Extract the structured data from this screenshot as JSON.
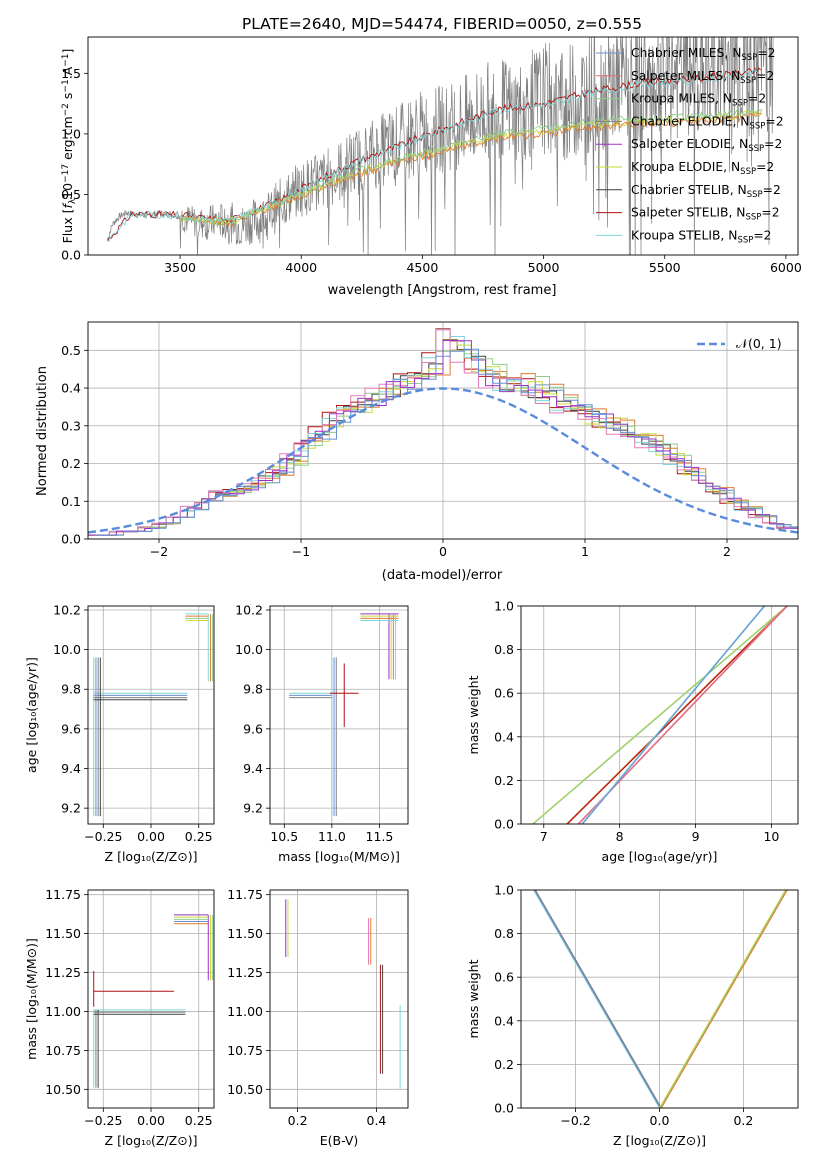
{
  "figure_title": "PLATE=2640, MJD=54474, FIBERID=0050, z=0.555",
  "models": [
    {
      "name": "Chabrier MILES, N$_{SSP}$=2",
      "label_main": "Chabrier MILES, N",
      "color": "#6b8fd6"
    },
    {
      "name": "Salpeter MILES, N$_{SSP}$=2",
      "label_main": "Salpeter MILES, N",
      "color": "#e07070"
    },
    {
      "name": "Kroupa MILES, N$_{SSP}$=2",
      "label_main": "Kroupa MILES, N",
      "color": "#8fce8f"
    },
    {
      "name": "Chabrier ELODIE, N$_{SSP}$=2",
      "label_main": "Chabrier ELODIE, N",
      "color": "#7f7f7f"
    },
    {
      "name": "Salpeter ELODIE, N$_{SSP}$=2",
      "label_main": "Salpeter ELODIE, N",
      "color": "#9b30c9"
    },
    {
      "name": "Kroupa ELODIE, N$_{SSP}$=2",
      "label_main": "Kroupa ELODIE, N",
      "color": "#c9d93a"
    },
    {
      "name": "Chabrier STELIB, N$_{SSP}$=2",
      "label_main": "Chabrier STELIB, N",
      "color": "#404040"
    },
    {
      "name": "Salpeter STELIB, N$_{SSP}$=2",
      "label_main": "Salpeter STELIB, N",
      "color": "#b01010"
    },
    {
      "name": "Kroupa STELIB, N$_{SSP}$=2",
      "label_main": "Kroupa STELIB, N",
      "color": "#7fd6d9"
    }
  ],
  "legend_sub": "SSP",
  "legend_suffix": "=2",
  "extra_colors": {
    "orange": "#e07b30",
    "pink": "#e57bb5",
    "data_grey": "#808080"
  },
  "chart_data": [
    {
      "id": "spectrum",
      "type": "line",
      "xlabel": "wavelength [Angstrom, rest frame]",
      "ylabel": "Flux [f$_\\lambda$10$^{-17}$ erg cm$^{-2}$ s$^{-1}$ A$^{-1}$]",
      "ylabel_parts": [
        "Flux [",
        "f",
        "λ",
        "10",
        "−17",
        " erg cm",
        "−2",
        " s",
        "−1",
        " A",
        "−1",
        "]"
      ],
      "xlim": [
        3120,
        6050
      ],
      "ylim": [
        0,
        1.8
      ],
      "xticks": [
        3500,
        4000,
        4500,
        5000,
        5500,
        6000
      ],
      "yticks": [
        0.0,
        0.5,
        1.0,
        1.5
      ],
      "legend_position": "upper right",
      "series": [
        {
          "name": "data",
          "x": [
            3200,
            3220,
            3240,
            3260,
            3280,
            3300,
            3350,
            3400,
            3450,
            3500,
            3550,
            3600,
            3650,
            3700,
            3750,
            3800,
            3850,
            3900,
            3950,
            4000,
            4100,
            4200,
            4300,
            4400,
            4500,
            4600,
            4700,
            4800,
            4900,
            5000,
            5100,
            5200,
            5300,
            5400,
            5500,
            5600,
            5700,
            5800,
            5900
          ],
          "y": [
            0.12,
            0.25,
            0.3,
            0.33,
            0.35,
            0.34,
            0.33,
            0.34,
            0.34,
            0.32,
            0.28,
            0.26,
            0.28,
            0.28,
            0.24,
            0.28,
            0.3,
            0.4,
            0.48,
            0.55,
            0.62,
            0.74,
            0.84,
            0.92,
            1.02,
            1.05,
            1.12,
            1.22,
            1.18,
            1.3,
            1.25,
            1.36,
            1.4,
            1.45,
            1.48,
            1.52,
            1.55,
            1.6,
            1.65
          ]
        },
        {
          "name": "Salpeter STELIB, N$_{SSP}$=2",
          "x": [
            3200,
            3300,
            3500,
            3700,
            3900,
            4000,
            4200,
            4400,
            4600,
            4800,
            5000,
            5200,
            5400,
            5600,
            5800,
            5900
          ],
          "y": [
            0.12,
            0.34,
            0.33,
            0.28,
            0.44,
            0.55,
            0.75,
            0.9,
            1.05,
            1.2,
            1.25,
            1.35,
            1.42,
            1.45,
            1.5,
            1.52
          ]
        },
        {
          "name": "Kroupa ELODIE, N$_{SSP}$=2",
          "x": [
            3500,
            3700,
            3900,
            4000,
            4200,
            4400,
            4600,
            4800,
            5000,
            5200,
            5400,
            5600,
            5800,
            5900
          ],
          "y": [
            0.3,
            0.27,
            0.42,
            0.5,
            0.66,
            0.78,
            0.88,
            0.98,
            1.02,
            1.08,
            1.1,
            1.12,
            1.15,
            1.18
          ]
        }
      ]
    },
    {
      "id": "residuals",
      "type": "step-histogram",
      "xlabel": "(data-model)/error",
      "ylabel": "Normed distribution",
      "xlim": [
        -2.5,
        2.5
      ],
      "ylim": [
        0,
        0.575
      ],
      "xticks": [
        -2,
        -1,
        0,
        1,
        2
      ],
      "yticks": [
        0.0,
        0.1,
        0.2,
        0.3,
        0.4,
        0.5
      ],
      "legend": "$\\mathcal{N}(0,1)$",
      "legend_main": "𝒩(0, 1)",
      "legend_position": "upper right",
      "bin_width": 0.1,
      "bin_start": -2.5,
      "heights": [
        0.01,
        0.01,
        0.02,
        0.02,
        0.03,
        0.04,
        0.06,
        0.08,
        0.1,
        0.12,
        0.13,
        0.14,
        0.16,
        0.18,
        0.21,
        0.25,
        0.28,
        0.32,
        0.34,
        0.36,
        0.38,
        0.4,
        0.42,
        0.44,
        0.47,
        0.52,
        0.5,
        0.45,
        0.43,
        0.42,
        0.41,
        0.4,
        0.38,
        0.36,
        0.34,
        0.33,
        0.31,
        0.3,
        0.28,
        0.26,
        0.24,
        0.21,
        0.18,
        0.15,
        0.13,
        0.1,
        0.08,
        0.06,
        0.04,
        0.03
      ]
    },
    {
      "id": "age_vs_Z",
      "type": "errorbar",
      "xlabel": "Z [log$_{10}$($Z/Z_\\odot$)]",
      "ylabel": "age  [log$_{10}$($age/yr$)]",
      "xlim": [
        -0.33,
        0.33
      ],
      "ylim": [
        9.12,
        10.22
      ],
      "xticks": [
        -0.25,
        0.0,
        0.25
      ],
      "yticks": [
        9.2,
        9.4,
        9.6,
        9.8,
        10.0,
        10.2
      ],
      "points": [
        {
          "x": 0.3,
          "y": 10.18,
          "xerr": [
            0.12,
            0.0
          ],
          "yerr": [
            0.34,
            0.0
          ]
        },
        {
          "x": -0.3,
          "y": 9.78,
          "xerr": [
            0.0,
            0.49
          ],
          "yerr": [
            0.62,
            0.18
          ]
        }
      ]
    },
    {
      "id": "age_vs_mass",
      "type": "errorbar",
      "xlabel": "mass [log$_{10}$($M/M_\\odot$)]",
      "ylabel": "",
      "xlim": [
        10.35,
        11.8
      ],
      "ylim": [
        9.12,
        10.22
      ],
      "xticks": [
        10.5,
        11.0,
        11.5
      ],
      "yticks": [
        9.2,
        9.4,
        9.6,
        9.8,
        10.0,
        10.2
      ],
      "points": [
        {
          "x": 11.6,
          "y": 10.18,
          "xerr": [
            0.3,
            0.1
          ],
          "yerr": [
            0.33,
            0.0
          ]
        },
        {
          "x": 11.0,
          "y": 9.78,
          "xerr": [
            0.45,
            0.0
          ],
          "yerr": [
            0.62,
            0.18
          ]
        },
        {
          "x": 11.13,
          "y": 9.78,
          "xerr": [
            0.15,
            0.15
          ],
          "yerr": [
            0.17,
            0.15
          ]
        }
      ]
    },
    {
      "id": "cumulative_age",
      "type": "line",
      "xlabel": "age  [log$_{10}$($age/yr$)]",
      "ylabel": "mass weight",
      "xlim": [
        6.7,
        10.35
      ],
      "ylim": [
        0,
        1
      ],
      "xticks": [
        7,
        8,
        9,
        10
      ],
      "yticks": [
        0.0,
        0.2,
        0.4,
        0.6,
        0.8,
        1.0
      ],
      "series": [
        {
          "x": [
            6.85,
            10.2
          ],
          "y": [
            0.0,
            1.0
          ]
        },
        {
          "x": [
            7.3,
            10.2
          ],
          "y": [
            0.0,
            1.0
          ]
        },
        {
          "x": [
            7.45,
            10.2
          ],
          "y": [
            0.0,
            1.0
          ]
        },
        {
          "x": [
            7.5,
            9.9
          ],
          "y": [
            0.0,
            1.0
          ]
        }
      ]
    },
    {
      "id": "mass_vs_Z",
      "type": "errorbar",
      "xlabel": "Z [log$_{10}$($Z/Z_\\odot$)]",
      "ylabel": "mass [log$_{10}$($M/M_\\odot$)]",
      "xlim": [
        -0.33,
        0.33
      ],
      "ylim": [
        10.38,
        11.78
      ],
      "xticks": [
        -0.25,
        0.0,
        0.25
      ],
      "yticks": [
        10.5,
        10.75,
        11.0,
        11.25,
        11.5,
        11.75
      ],
      "points": [
        {
          "x": 0.3,
          "y": 11.62,
          "xerr": [
            0.18,
            0.0
          ],
          "yerr": [
            0.42,
            0.0
          ]
        },
        {
          "x": -0.3,
          "y": 11.01,
          "xerr": [
            0.0,
            0.48
          ],
          "yerr": [
            0.5,
            0.0
          ]
        },
        {
          "x": -0.3,
          "y": 11.13,
          "xerr": [
            0.0,
            0.42
          ],
          "yerr": [
            0.1,
            0.13
          ]
        }
      ]
    },
    {
      "id": "mass_vs_EBV",
      "type": "errorbar",
      "xlabel": "E(B-V)",
      "ylabel": "",
      "xlim": [
        0.13,
        0.48
      ],
      "ylim": [
        10.38,
        11.78
      ],
      "xticks": [
        0.2,
        0.4
      ],
      "yticks": [
        10.5,
        10.75,
        11.0,
        11.25,
        11.5,
        11.75
      ],
      "points": [
        {
          "x": 0.17,
          "y": 11.55,
          "yerr": [
            0.2,
            0.17
          ]
        },
        {
          "x": 0.38,
          "y": 11.45,
          "yerr": [
            0.15,
            0.15
          ]
        },
        {
          "x": 0.41,
          "y": 11.0,
          "yerr": [
            0.4,
            0.3
          ]
        },
        {
          "x": 0.46,
          "y": 10.77,
          "yerr": [
            0.27,
            0.27
          ]
        }
      ]
    },
    {
      "id": "cumulative_Z",
      "type": "line",
      "xlabel": "Z [log$_{10}$($Z/Z_\\odot$)]",
      "ylabel": "mass weight",
      "xlim": [
        -0.33,
        0.33
      ],
      "ylim": [
        0,
        1
      ],
      "xticks": [
        -0.2,
        0.0,
        0.2
      ],
      "yticks": [
        0.0,
        0.2,
        0.4,
        0.6,
        0.8,
        1.0
      ],
      "series": [
        {
          "x": [
            -0.3,
            0.0
          ],
          "y": [
            1.0,
            0.0
          ]
        },
        {
          "x": [
            0.0,
            0.3
          ],
          "y": [
            0.0,
            1.0
          ]
        }
      ]
    }
  ]
}
